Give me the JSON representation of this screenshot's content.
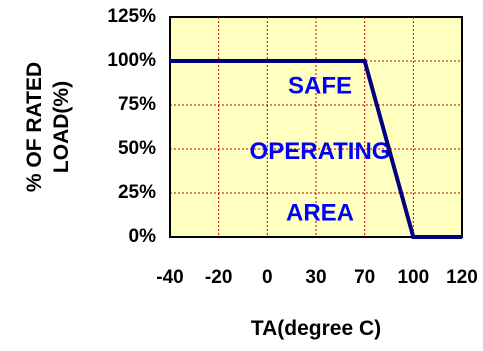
{
  "chart_data": {
    "type": "line",
    "x_categories": [
      "-40",
      "-20",
      "0",
      "30",
      "70",
      "100",
      "120"
    ],
    "y_tick_labels": [
      "125%",
      "100%",
      "75%",
      "50%",
      "25%",
      "0%"
    ],
    "y_ticks": [
      125,
      100,
      75,
      50,
      25,
      0
    ],
    "ylim": [
      0,
      125
    ],
    "xlabel": "TA(degree C)",
    "ylabel_line1": "% OF RATED",
    "ylabel_line2": "LOAD(%)",
    "annotation_lines": [
      "SAFE",
      "OPERATING",
      "AREA"
    ],
    "series": [
      {
        "points": [
          {
            "x": "-40",
            "y": 100
          },
          {
            "x": "70",
            "y": 100
          },
          {
            "x": "100",
            "y": 0
          },
          {
            "x": "120",
            "y": 0
          }
        ]
      }
    ],
    "grid": true,
    "colors": {
      "plot_background": "#FFFFC0",
      "grid": "#C00000",
      "line": "#000080",
      "annotation": "#0000FF",
      "axis": "#000000"
    }
  }
}
